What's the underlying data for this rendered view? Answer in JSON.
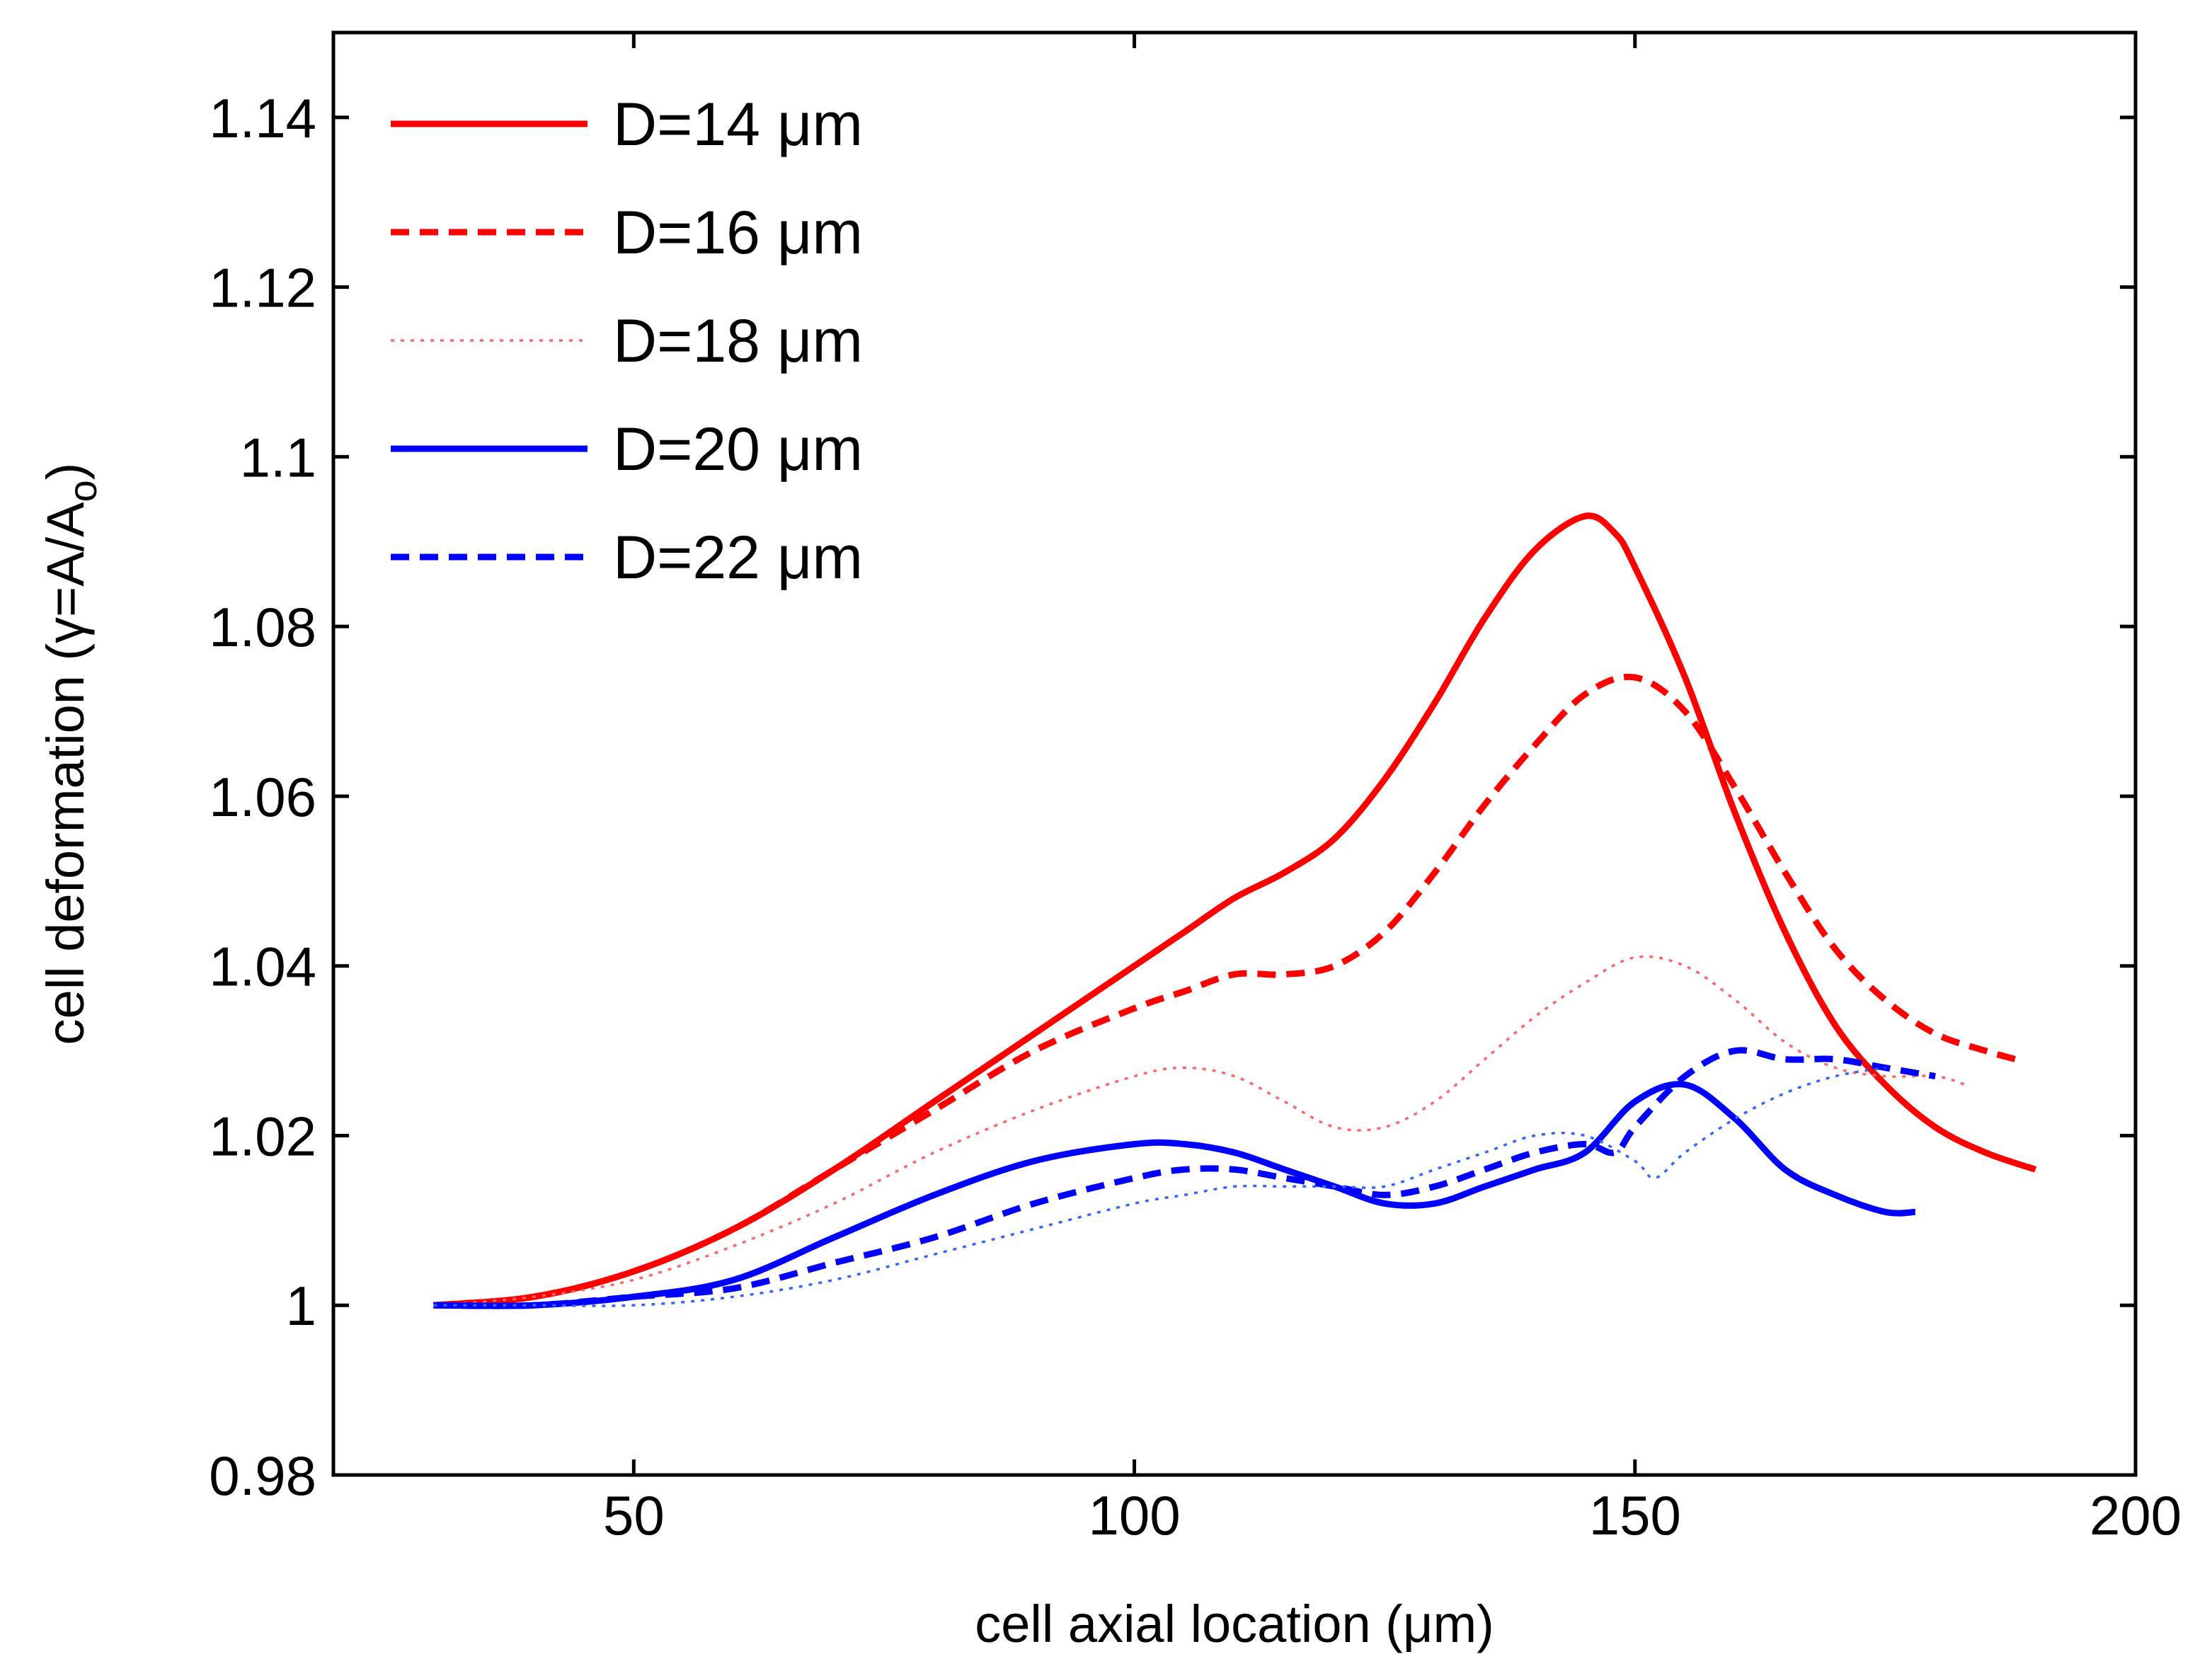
{
  "chart_data": {
    "type": "line",
    "title": "",
    "xlabel": "cell axial location (μm)",
    "ylabel_main": "cell deformation (",
    "ylabel_gamma": "γ",
    "ylabel_eq": "=A/A",
    "ylabel_sub": "o",
    "ylabel_close": ")",
    "xlim": [
      20,
      200
    ],
    "ylim": [
      0.98,
      1.15
    ],
    "xticks": [
      50,
      100,
      150,
      200
    ],
    "xtick_labels": [
      "50",
      "100",
      "150",
      "200"
    ],
    "yticks": [
      0.98,
      1.0,
      1.02,
      1.04,
      1.06,
      1.08,
      1.1,
      1.12,
      1.14
    ],
    "ytick_labels": [
      "0.98",
      "1",
      "1.02",
      "1.04",
      "1.06",
      "1.08",
      "1.1",
      "1.12",
      "1.14"
    ],
    "grid": false,
    "legend_position": "top-left",
    "series": [
      {
        "name": "D=14 μm",
        "color": "#ff0000",
        "style": "solid",
        "x": [
          30,
          40,
          50,
          60,
          70,
          80,
          90,
          100,
          105,
          110,
          115,
          120,
          125,
          130,
          135,
          140,
          145,
          148,
          150,
          155,
          160,
          165,
          170,
          175,
          180,
          185,
          190
        ],
        "y": [
          1.0,
          1.001,
          1.004,
          1.009,
          1.016,
          1.024,
          1.032,
          1.04,
          1.044,
          1.048,
          1.051,
          1.055,
          1.062,
          1.071,
          1.081,
          1.089,
          1.093,
          1.091,
          1.087,
          1.074,
          1.058,
          1.044,
          1.033,
          1.026,
          1.021,
          1.018,
          1.016
        ]
      },
      {
        "name": "D=16 μm",
        "color": "#ff0000",
        "style": "dashed",
        "x": [
          30,
          40,
          50,
          60,
          70,
          80,
          90,
          100,
          105,
          110,
          115,
          120,
          125,
          130,
          135,
          140,
          145,
          150,
          155,
          160,
          165,
          170,
          175,
          180,
          185,
          188
        ],
        "y": [
          1.0,
          1.001,
          1.004,
          1.009,
          1.016,
          1.023,
          1.03,
          1.035,
          1.037,
          1.039,
          1.039,
          1.04,
          1.044,
          1.051,
          1.059,
          1.066,
          1.072,
          1.074,
          1.07,
          1.061,
          1.051,
          1.042,
          1.036,
          1.032,
          1.03,
          1.029
        ]
      },
      {
        "name": "D=18 μm",
        "color": "#ff6666",
        "style": "dotted",
        "x": [
          30,
          40,
          50,
          60,
          70,
          80,
          90,
          100,
          105,
          110,
          115,
          120,
          125,
          130,
          135,
          140,
          145,
          150,
          155,
          160,
          165,
          170,
          175,
          180,
          183
        ],
        "y": [
          1.0,
          1.001,
          1.003,
          1.007,
          1.012,
          1.018,
          1.023,
          1.027,
          1.028,
          1.027,
          1.024,
          1.021,
          1.021,
          1.024,
          1.029,
          1.034,
          1.038,
          1.041,
          1.04,
          1.036,
          1.031,
          1.028,
          1.027,
          1.027,
          1.026
        ]
      },
      {
        "name": "D=20 μm",
        "color": "#0000ff",
        "style": "solid",
        "x": [
          30,
          40,
          50,
          60,
          70,
          80,
          90,
          100,
          105,
          110,
          115,
          120,
          125,
          130,
          135,
          140,
          145,
          150,
          155,
          160,
          165,
          170,
          175,
          178
        ],
        "y": [
          1.0,
          1.0,
          1.001,
          1.003,
          1.008,
          1.013,
          1.017,
          1.019,
          1.019,
          1.018,
          1.016,
          1.014,
          1.012,
          1.012,
          1.014,
          1.016,
          1.018,
          1.024,
          1.026,
          1.022,
          1.016,
          1.013,
          1.011,
          1.011
        ]
      },
      {
        "name": "D=22 μm",
        "color": "#0000ff",
        "style": "dashed",
        "x": [
          30,
          40,
          50,
          60,
          70,
          80,
          90,
          100,
          105,
          110,
          115,
          120,
          125,
          130,
          135,
          140,
          145,
          148,
          150,
          155,
          160,
          165,
          170,
          175,
          180
        ],
        "y": [
          1.0,
          1.0,
          1.001,
          1.002,
          1.005,
          1.008,
          1.012,
          1.015,
          1.016,
          1.016,
          1.015,
          1.014,
          1.013,
          1.014,
          1.016,
          1.018,
          1.019,
          1.018,
          1.021,
          1.027,
          1.03,
          1.029,
          1.029,
          1.028,
          1.027
        ]
      },
      {
        "name": "",
        "color": "#3366ff",
        "style": "dotted",
        "x": [
          30,
          40,
          50,
          60,
          70,
          80,
          90,
          100,
          105,
          110,
          115,
          120,
          125,
          130,
          135,
          140,
          145,
          150,
          152,
          155,
          160,
          165,
          170,
          175
        ],
        "y": [
          1.0,
          1.0,
          1.0,
          1.001,
          1.003,
          1.006,
          1.009,
          1.012,
          1.013,
          1.014,
          1.014,
          1.014,
          1.014,
          1.016,
          1.018,
          1.02,
          1.02,
          1.017,
          1.015,
          1.018,
          1.022,
          1.025,
          1.027,
          1.028
        ]
      }
    ]
  }
}
